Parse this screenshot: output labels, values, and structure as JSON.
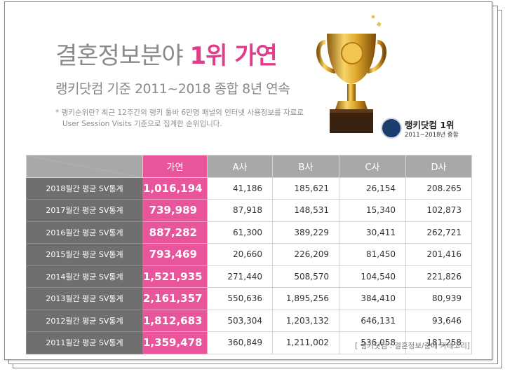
{
  "header": {
    "title_main": "결혼정보분야 ",
    "title_highlight": "1위 가연",
    "subtitle": "랭키닷컴 기준 2011~2018 종합 8년 연속",
    "note_line1": "* 랭키순위란? 최근 12주간의 랭키 툴바 6만명 패널의 인터넷 사용정보를 자료로",
    "note_line2": "User Session Visits 기준으로 집계한 순위입니다."
  },
  "badge": {
    "title": "랭키닷컴 1위",
    "years": "2011~2018년 종합"
  },
  "table": {
    "columns": [
      "가연",
      "A사",
      "B사",
      "C사",
      "D사"
    ],
    "rows": [
      {
        "label": "2018월간 평균 SV통계",
        "values": [
          "1,016,194",
          "41,186",
          "185,621",
          "26,154",
          "208.265"
        ]
      },
      {
        "label": "2017월간 평균 SV통계",
        "values": [
          "739,989",
          "87,918",
          "148,531",
          "15,340",
          "102,873"
        ]
      },
      {
        "label": "2016월간 평균 SV통계",
        "values": [
          "887,282",
          "61,300",
          "389,229",
          "30,411",
          "262,721"
        ]
      },
      {
        "label": "2015월간 평균 SV통계",
        "values": [
          "793,469",
          "20,660",
          "226,209",
          "81,450",
          "201,416"
        ]
      },
      {
        "label": "2014월간 평균 SV통계",
        "values": [
          "1,521,935",
          "271,440",
          "508,570",
          "104,540",
          "221,826"
        ]
      },
      {
        "label": "2013월간 평균 SV통계",
        "values": [
          "2,161,357",
          "550,636",
          "1,895,256",
          "384,410",
          "80,939"
        ]
      },
      {
        "label": "2012월간 평균 SV통계",
        "values": [
          "1,812,683",
          "503,304",
          "1,203,132",
          "646,131",
          "93,646"
        ]
      },
      {
        "label": "2011월간 평균 SV통계",
        "values": [
          "1,359,478",
          "360,849",
          "1,211,002",
          "536,058",
          "181,258"
        ]
      }
    ]
  },
  "source": "[ 랭키닷컴 : 결혼정보/중매 카테고리]",
  "colors": {
    "brand": "#e8559a",
    "title_highlight": "#e23d8c",
    "header_gray": "#a8a8a8",
    "rowhead_gray": "#6f6f6f"
  },
  "icons": {
    "trophy": "trophy-icon",
    "badge": "rankey-badge-icon"
  }
}
